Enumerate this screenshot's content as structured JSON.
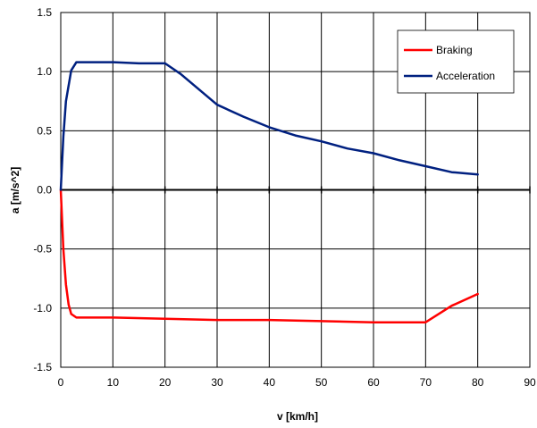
{
  "chart_data": {
    "type": "line",
    "title": "",
    "xlabel": "v [km/h]",
    "ylabel": "a [m/s^2]",
    "xlim": [
      0,
      90
    ],
    "ylim": [
      -1.5,
      1.5
    ],
    "xticks": [
      0,
      10,
      20,
      30,
      40,
      50,
      60,
      70,
      80,
      90
    ],
    "yticks": [
      -1.5,
      -1.0,
      -0.5,
      0.0,
      0.5,
      1.0,
      1.5
    ],
    "xtick_labels": [
      "0",
      "10",
      "20",
      "30",
      "40",
      "50",
      "60",
      "70",
      "80",
      "90"
    ],
    "ytick_labels": [
      "-1.5",
      "-1.0",
      "-0.5",
      "0.0",
      "0.5",
      "1.0",
      "1.5"
    ],
    "grid": true,
    "legend_position": "top-right",
    "series": [
      {
        "name": "Braking",
        "color": "#ff0000",
        "x": [
          0,
          0.5,
          1,
          1.5,
          2,
          3,
          10,
          20,
          30,
          40,
          50,
          60,
          65,
          70,
          75,
          80
        ],
        "y": [
          0,
          -0.5,
          -0.8,
          -0.97,
          -1.05,
          -1.08,
          -1.08,
          -1.09,
          -1.1,
          -1.1,
          -1.11,
          -1.12,
          -1.12,
          -1.12,
          -0.98,
          -0.88
        ]
      },
      {
        "name": "Acceleration",
        "color": "#002080",
        "x": [
          0,
          0.5,
          1,
          2,
          3,
          5,
          10,
          15,
          20,
          23,
          30,
          35,
          40,
          45,
          50,
          55,
          60,
          65,
          70,
          75,
          80
        ],
        "y": [
          0,
          0.45,
          0.75,
          1.01,
          1.08,
          1.08,
          1.08,
          1.07,
          1.07,
          0.98,
          0.72,
          0.62,
          0.53,
          0.46,
          0.41,
          0.35,
          0.31,
          0.25,
          0.2,
          0.15,
          0.13
        ]
      }
    ]
  }
}
